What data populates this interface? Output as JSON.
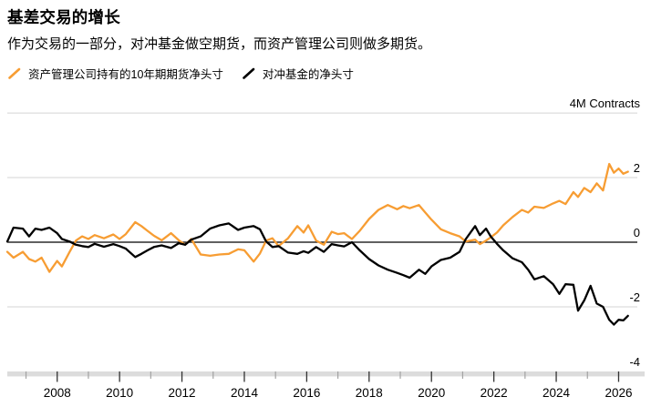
{
  "header": {
    "title": "基差交易的增长",
    "subtitle": "作为交易的一部分，对冲基金做空期货，而资产管理公司则做多期货。"
  },
  "chart_data": {
    "type": "line",
    "title": "基差交易的增长",
    "unit_label": "4M Contracts",
    "xlim": [
      2006.4,
      2026.6
    ],
    "ylim": [
      -4.03,
      4.03
    ],
    "grid": true,
    "legend_position": "top-left",
    "yticks": [
      {
        "value": 4,
        "label": "4M Contracts",
        "line": true
      },
      {
        "value": 2,
        "label": "2",
        "line": true
      },
      {
        "value": 0,
        "label": "0",
        "line": true
      },
      {
        "value": -2,
        "label": "-2",
        "line": true
      },
      {
        "value": -4,
        "label": "-4",
        "line": false
      }
    ],
    "xticks_major": [
      2008,
      2010,
      2012,
      2014,
      2016,
      2018,
      2020,
      2022,
      2024,
      2026
    ],
    "xticks_minor": [
      2007,
      2009,
      2011,
      2013,
      2015,
      2017,
      2019,
      2021,
      2023,
      2025
    ],
    "style": {
      "grid_color": "#D4D4D4",
      "zero_line_color": "#000000",
      "axis_band_color": "#DCDCDC",
      "tick_minor_color": "#A3A3A3",
      "tick_major_color": "#333333"
    },
    "x": [
      2006.4,
      2006.6,
      2006.9,
      2007.1,
      2007.3,
      2007.5,
      2007.75,
      2008.0,
      2008.15,
      2008.4,
      2008.6,
      2008.8,
      2009.0,
      2009.2,
      2009.5,
      2009.8,
      2010.0,
      2010.2,
      2010.5,
      2010.7,
      2010.9,
      2011.1,
      2011.35,
      2011.65,
      2011.9,
      2012.1,
      2012.3,
      2012.6,
      2012.9,
      2013.2,
      2013.5,
      2013.8,
      2014.0,
      2014.3,
      2014.5,
      2014.7,
      2014.9,
      2015.1,
      2015.4,
      2015.7,
      2015.9,
      2016.05,
      2016.3,
      2016.55,
      2016.8,
      2017.0,
      2017.2,
      2017.45,
      2017.7,
      2018.0,
      2018.3,
      2018.6,
      2018.9,
      2019.1,
      2019.3,
      2019.6,
      2019.8,
      2020.0,
      2020.3,
      2020.6,
      2020.9,
      2021.1,
      2021.4,
      2021.55,
      2021.75,
      2021.9,
      2022.1,
      2022.3,
      2022.6,
      2022.9,
      2023.1,
      2023.3,
      2023.6,
      2023.9,
      2024.1,
      2024.3,
      2024.55,
      2024.7,
      2024.9,
      2025.1,
      2025.3,
      2025.5,
      2025.7,
      2025.85,
      2026.0,
      2026.15,
      2026.3
    ],
    "series": [
      {
        "id": "asset-managers",
        "name": "资产管理公司持有的10年期期货净头寸",
        "color": "#F79D33",
        "values": [
          -0.3,
          -0.48,
          -0.3,
          -0.52,
          -0.6,
          -0.48,
          -0.92,
          -0.58,
          -0.75,
          -0.3,
          0.05,
          0.18,
          0.1,
          0.22,
          0.12,
          0.24,
          0.1,
          0.25,
          0.62,
          0.5,
          0.35,
          0.2,
          0.06,
          0.28,
          0.06,
          -0.08,
          0.1,
          -0.38,
          -0.42,
          -0.38,
          -0.36,
          -0.22,
          -0.25,
          -0.6,
          -0.35,
          0.05,
          0.12,
          -0.12,
          0.12,
          0.5,
          0.3,
          0.52,
          0.05,
          -0.08,
          0.32,
          0.25,
          0.28,
          0.1,
          0.35,
          0.72,
          1.0,
          1.15,
          1.02,
          1.12,
          1.05,
          1.15,
          0.92,
          0.7,
          0.4,
          0.28,
          0.18,
          0.02,
          0.08,
          -0.06,
          0.05,
          0.15,
          0.3,
          0.52,
          0.78,
          1.0,
          0.92,
          1.1,
          1.06,
          1.2,
          1.28,
          1.18,
          1.55,
          1.4,
          1.68,
          1.55,
          1.82,
          1.6,
          2.42,
          2.15,
          2.28,
          2.12,
          2.18
        ]
      },
      {
        "id": "hedge-funds",
        "name": "对冲基金的净头寸",
        "color": "#000000",
        "values": [
          0.02,
          0.45,
          0.42,
          0.18,
          0.42,
          0.38,
          0.45,
          0.28,
          0.1,
          0.02,
          -0.08,
          -0.12,
          -0.15,
          -0.05,
          -0.14,
          -0.06,
          -0.12,
          -0.2,
          -0.46,
          -0.36,
          -0.25,
          -0.15,
          -0.1,
          -0.18,
          -0.03,
          -0.08,
          0.08,
          0.18,
          0.42,
          0.52,
          0.58,
          0.38,
          0.45,
          0.5,
          0.4,
          0.02,
          -0.15,
          -0.12,
          -0.32,
          -0.36,
          -0.28,
          -0.33,
          -0.15,
          -0.3,
          -0.06,
          -0.1,
          -0.13,
          0.0,
          -0.25,
          -0.52,
          -0.72,
          -0.85,
          -0.95,
          -1.02,
          -1.1,
          -0.85,
          -0.98,
          -0.75,
          -0.55,
          -0.48,
          -0.3,
          0.1,
          0.5,
          0.22,
          0.42,
          0.18,
          -0.05,
          -0.25,
          -0.5,
          -0.62,
          -0.85,
          -1.15,
          -1.05,
          -1.3,
          -1.6,
          -1.3,
          -1.32,
          -2.12,
          -1.8,
          -1.35,
          -1.9,
          -2.0,
          -2.4,
          -2.55,
          -2.4,
          -2.42,
          -2.28
        ]
      }
    ]
  }
}
